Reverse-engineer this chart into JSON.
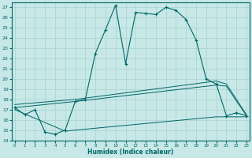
{
  "xlabel": "Humidex (Indice chaleur)",
  "bg_color": "#c8e8e8",
  "grid_color": "#a8d0d0",
  "line_color": "#006666",
  "ylim": [
    14,
    27.5
  ],
  "xlim": [
    -0.3,
    23.3
  ],
  "yticks": [
    14,
    15,
    16,
    17,
    18,
    19,
    20,
    21,
    22,
    23,
    24,
    25,
    26,
    27
  ],
  "xticks": [
    0,
    1,
    2,
    3,
    4,
    5,
    6,
    7,
    8,
    9,
    10,
    11,
    12,
    13,
    14,
    15,
    16,
    17,
    18,
    19,
    20,
    21,
    22,
    23
  ],
  "main_x": [
    0,
    1,
    2,
    3,
    4,
    5,
    6,
    7,
    8,
    9,
    10,
    11,
    12,
    13,
    14,
    15,
    16,
    17,
    18,
    19,
    20,
    21,
    22,
    23
  ],
  "main_y": [
    17.2,
    16.5,
    17.0,
    14.8,
    14.6,
    15.0,
    17.8,
    18.0,
    22.5,
    24.8,
    27.2,
    21.5,
    26.5,
    26.4,
    26.3,
    27.0,
    26.7,
    25.8,
    23.8,
    20.0,
    19.5,
    16.4,
    16.7,
    16.4
  ],
  "reg1_x": [
    0,
    6,
    20,
    21,
    23
  ],
  "reg1_y": [
    17.5,
    18.0,
    19.8,
    19.5,
    16.5
  ],
  "reg2_x": [
    0,
    6,
    20,
    21,
    23
  ],
  "reg2_y": [
    17.2,
    17.8,
    19.4,
    19.3,
    16.4
  ],
  "reg3_x": [
    0,
    5,
    6,
    20,
    21,
    23
  ],
  "reg3_y": [
    17.0,
    14.9,
    15.0,
    16.3,
    16.3,
    16.3
  ]
}
